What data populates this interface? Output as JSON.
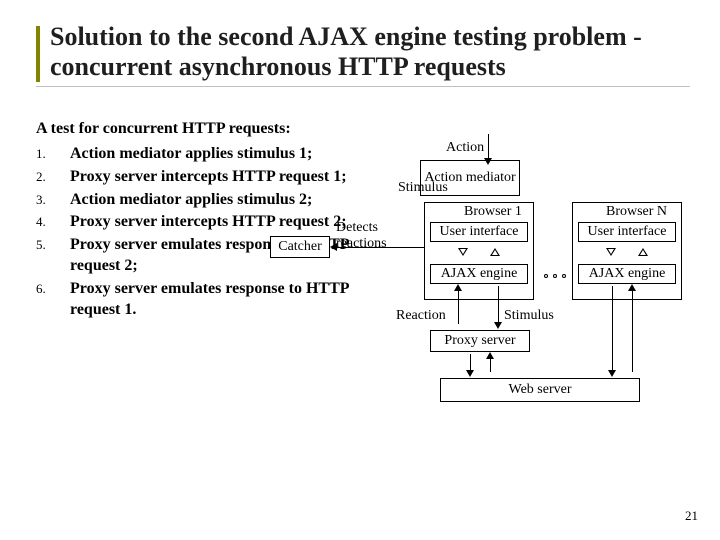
{
  "title": "Solution to the second AJAX engine testing problem - concurrent asynchronous HTTP requests",
  "intro": "A test for concurrent HTTP requests:",
  "steps": [
    {
      "n": "1.",
      "t": "Action mediator applies stimulus 1;"
    },
    {
      "n": "2.",
      "t": "Proxy server intercepts HTTP request 1;"
    },
    {
      "n": "3.",
      "t": "Action mediator applies stimulus 2;"
    },
    {
      "n": "4.",
      "t": "Proxy server intercepts HTTP request 2;"
    },
    {
      "n": "5.",
      "t": "Proxy server emulates response to HTTP request 2;"
    },
    {
      "n": "6.",
      "t": "Proxy server emulates response to HTTP request 1."
    }
  ],
  "diagram": {
    "action_mediator": "Action mediator",
    "catcher": "Catcher",
    "browser1": "Browser 1",
    "user_interface1": "User interface",
    "ajax_engine1": "AJAX engine",
    "browserN": "Browser N",
    "user_interfaceN": "User interface",
    "ajax_engineN": "AJAX engine",
    "proxy_server": "Proxy server",
    "web_server": "Web server",
    "lbl_stimulus_top": "Stimulus",
    "lbl_action": "Action",
    "lbl_detects": "Detects reactions",
    "lbl_reaction": "Reaction",
    "lbl_stimulus_bot": "Stimulus"
  },
  "page_number": "21",
  "colors": {
    "accent": "#848200",
    "underline": "#c0c0c0"
  }
}
